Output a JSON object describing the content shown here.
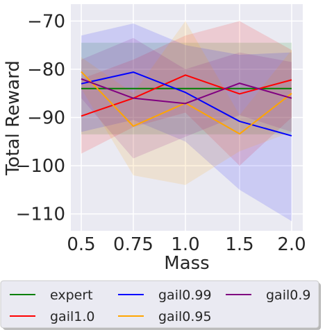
{
  "chart_data": {
    "type": "line",
    "xlabel": "Mass",
    "ylabel": "Total Reward",
    "x_ticks": [
      "0.5",
      "0.75",
      "1.0",
      "1.5",
      "2.0"
    ],
    "y_ticks": [
      -70,
      -80,
      -90,
      -100,
      -110
    ],
    "y_tick_labels": [
      "−70",
      "−80",
      "−90",
      "−100",
      "−110"
    ],
    "ylim": [
      -113.5,
      -66.5
    ],
    "grid": true,
    "legend_position": "bottom",
    "legend_columns": 3,
    "series": [
      {
        "name": "expert",
        "color": "#008000",
        "values": [
          -84.0,
          -84.0,
          -84.0,
          -84.0,
          -84.0
        ],
        "upper": [
          -74.5,
          -74.5,
          -74.5,
          -74.5,
          -74.5
        ],
        "lower": [
          -93.5,
          -93.5,
          -93.5,
          -93.5,
          -93.5
        ]
      },
      {
        "name": "gail1.0",
        "color": "#ff0000",
        "values": [
          -89.7,
          -86.0,
          -81.2,
          -85.1,
          -82.2
        ],
        "upper": [
          -82.0,
          -78.0,
          -73.0,
          -70.0,
          -76.0
        ],
        "lower": [
          -97.5,
          -92.0,
          -89.0,
          -100.0,
          -90.0
        ]
      },
      {
        "name": "gail0.99",
        "color": "#0000ff",
        "values": [
          -83.0,
          -80.6,
          -84.8,
          -90.8,
          -93.8
        ],
        "upper": [
          -73.0,
          -70.5,
          -75.0,
          -77.0,
          -76.5
        ],
        "lower": [
          -93.0,
          -90.5,
          -95.0,
          -105.0,
          -111.5
        ]
      },
      {
        "name": "gail0.95",
        "color": "#ffa500",
        "values": [
          -80.5,
          -91.8,
          -87.0,
          -93.4,
          -85.0
        ],
        "upper": [
          -77.5,
          -85.0,
          -70.0,
          -89.5,
          -76.0
        ],
        "lower": [
          -84.0,
          -102.0,
          -104.0,
          -97.0,
          -93.0
        ]
      },
      {
        "name": "gail0.9",
        "color": "#800080",
        "values": [
          -82.0,
          -86.0,
          -87.1,
          -82.9,
          -86.0
        ],
        "upper": [
          -78.0,
          -73.5,
          -80.0,
          -76.5,
          -78.5
        ],
        "lower": [
          -86.0,
          -98.5,
          -94.0,
          -89.5,
          -93.0
        ]
      }
    ]
  }
}
